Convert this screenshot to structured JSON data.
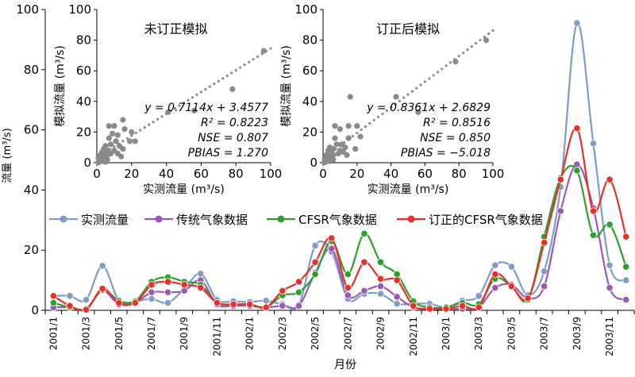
{
  "chart_data": [
    {
      "type": "line",
      "xlabel": "月份",
      "ylabel": "流量 (m³/s)",
      "ylim": [
        0,
        100
      ],
      "yticks": [
        0,
        20,
        40,
        60,
        80,
        100
      ],
      "xtick_labels": [
        "2001/1",
        "2001/3",
        "2001/5",
        "2001/7",
        "2001/9",
        "2001/11",
        "2002/1",
        "2002/3",
        "2002/5",
        "2002/7",
        "2002/9",
        "2002/11",
        "2003/1",
        "2003/3",
        "2003/5",
        "2003/7",
        "2003/9",
        "2003/11"
      ],
      "x": [
        "2001/1",
        "2001/2",
        "2001/3",
        "2001/4",
        "2001/5",
        "2001/6",
        "2001/7",
        "2001/8",
        "2001/9",
        "2001/10",
        "2001/11",
        "2001/12",
        "2002/1",
        "2002/2",
        "2002/3",
        "2002/4",
        "2002/5",
        "2002/6",
        "2002/7",
        "2002/8",
        "2002/9",
        "2002/10",
        "2002/11",
        "2002/12",
        "2003/1",
        "2003/2",
        "2003/3",
        "2003/4",
        "2003/5",
        "2003/6",
        "2003/7",
        "2003/8",
        "2003/9",
        "2003/10",
        "2003/11",
        "2003/12"
      ],
      "legend": "top",
      "series": [
        {
          "name": "实测流量",
          "color": "#7f9bc6",
          "values": [
            4.8,
            4.8,
            3.5,
            14.8,
            3.2,
            3.0,
            3.8,
            2.5,
            7.2,
            12.2,
            3.5,
            3.0,
            2.8,
            3.2,
            2.0,
            1.8,
            21.5,
            19.5,
            3.8,
            5.5,
            5.5,
            2.2,
            2.2,
            2.2,
            1.0,
            3.2,
            4.8,
            15.0,
            14.5,
            5.0,
            13.0,
            41.0,
            95.5,
            55.5,
            15.0,
            10.0
          ]
        },
        {
          "name": "传统气象数据",
          "color": "#9b59b6",
          "values": [
            1.0,
            1.0,
            0.5,
            6.5,
            2.0,
            2.5,
            6.0,
            6.0,
            6.5,
            10.0,
            2.0,
            1.5,
            1.5,
            1.0,
            1.5,
            1.5,
            12.5,
            20.5,
            5.0,
            6.5,
            8.0,
            4.5,
            1.0,
            0.5,
            0.5,
            0.5,
            1.0,
            7.5,
            8.5,
            4.0,
            8.0,
            33.0,
            48.5,
            34.0,
            7.5,
            3.5
          ]
        },
        {
          "name": "CFSR气象数据",
          "color": "#2ca02c",
          "values": [
            2.5,
            1.0,
            0.5,
            6.8,
            3.2,
            3.0,
            9.5,
            11.0,
            9.5,
            8.5,
            2.5,
            2.0,
            2.0,
            1.0,
            5.0,
            6.0,
            12.0,
            23.0,
            12.0,
            25.5,
            16.0,
            12.0,
            3.0,
            1.0,
            1.0,
            2.5,
            2.0,
            10.5,
            8.0,
            3.5,
            24.5,
            44.0,
            46.5,
            25.0,
            28.5,
            14.5
          ]
        },
        {
          "name": "订正的CFSR气象数据",
          "color": "#e8302a",
          "values": [
            4.8,
            1.5,
            0.2,
            7.2,
            2.5,
            2.5,
            8.5,
            9.5,
            8.5,
            7.5,
            2.5,
            2.0,
            2.0,
            1.0,
            6.5,
            9.5,
            16.0,
            24.0,
            7.5,
            16.0,
            10.5,
            10.0,
            1.5,
            0.5,
            0.5,
            1.5,
            1.0,
            12.0,
            8.0,
            4.0,
            22.5,
            43.5,
            60.5,
            33.0,
            43.5,
            24.5
          ]
        }
      ]
    },
    {
      "type": "scatter",
      "title": "未订正模拟",
      "xlabel": "实测流量 (m³/s)",
      "ylabel": "模拟流量 (m³/s)",
      "xlim": [
        0,
        100
      ],
      "ylim": [
        0,
        100
      ],
      "ticks": [
        0,
        20,
        40,
        60,
        80,
        100
      ],
      "stats": [
        "y = 0.7114x + 3.4577",
        "R² = 0.8223",
        "NSE = 0.807",
        "PBIAS = 1.270"
      ],
      "fit": {
        "slope": 0.7114,
        "intercept": 3.4577
      },
      "points": [
        [
          1,
          1
        ],
        [
          2,
          3
        ],
        [
          2,
          5
        ],
        [
          3,
          7
        ],
        [
          3,
          2
        ],
        [
          4,
          9
        ],
        [
          4,
          1
        ],
        [
          5,
          11
        ],
        [
          5,
          3
        ],
        [
          5,
          0.5
        ],
        [
          6,
          5
        ],
        [
          6,
          2
        ],
        [
          7,
          16
        ],
        [
          7,
          24
        ],
        [
          8,
          12
        ],
        [
          8,
          6
        ],
        [
          9,
          19
        ],
        [
          10,
          24
        ],
        [
          10,
          8
        ],
        [
          11,
          14
        ],
        [
          12,
          6
        ],
        [
          12,
          18
        ],
        [
          13,
          11
        ],
        [
          14,
          4
        ],
        [
          15,
          9
        ],
        [
          15,
          28
        ],
        [
          16,
          22
        ],
        [
          19,
          14
        ],
        [
          20,
          20
        ],
        [
          22,
          14
        ],
        [
          41,
          33
        ],
        [
          56,
          34
        ],
        [
          78,
          48
        ],
        [
          96,
          73
        ],
        [
          1,
          3
        ],
        [
          3,
          4
        ],
        [
          2,
          1
        ],
        [
          4,
          6
        ],
        [
          6,
          8
        ],
        [
          1,
          0.2
        ],
        [
          3,
          1
        ],
        [
          5,
          7
        ]
      ]
    },
    {
      "type": "scatter",
      "title": "订正后模拟",
      "xlabel": "实测流量 (m³/s)",
      "ylabel": "模拟流量 (m³/s)",
      "xlim": [
        0,
        100
      ],
      "ylim": [
        0,
        100
      ],
      "ticks": [
        0,
        20,
        40,
        60,
        80,
        100
      ],
      "stats": [
        "y = 0.8361x + 2.6829",
        "R² = 0.8516",
        "NSE = 0.850",
        "PBIAS = −5.018"
      ],
      "fit": {
        "slope": 0.8361,
        "intercept": 2.6829
      },
      "points": [
        [
          1,
          1
        ],
        [
          2,
          3
        ],
        [
          2,
          5
        ],
        [
          3,
          8
        ],
        [
          3,
          2
        ],
        [
          4,
          10
        ],
        [
          4,
          1
        ],
        [
          5,
          7
        ],
        [
          5,
          3
        ],
        [
          6,
          5
        ],
        [
          6,
          2
        ],
        [
          7,
          16
        ],
        [
          7,
          24
        ],
        [
          8,
          12
        ],
        [
          9,
          6
        ],
        [
          10,
          22
        ],
        [
          10,
          8
        ],
        [
          11,
          12
        ],
        [
          12,
          7
        ],
        [
          13,
          10
        ],
        [
          14,
          5
        ],
        [
          15,
          16
        ],
        [
          15,
          24
        ],
        [
          16,
          43
        ],
        [
          19,
          9
        ],
        [
          20,
          24
        ],
        [
          22,
          17
        ],
        [
          43,
          43
        ],
        [
          56,
          33
        ],
        [
          78,
          66
        ],
        [
          96,
          80
        ],
        [
          1,
          3
        ],
        [
          3,
          4
        ],
        [
          2,
          1
        ],
        [
          4,
          6
        ],
        [
          6,
          9
        ],
        [
          1,
          0.2
        ],
        [
          3,
          1
        ],
        [
          5,
          9
        ]
      ]
    }
  ]
}
